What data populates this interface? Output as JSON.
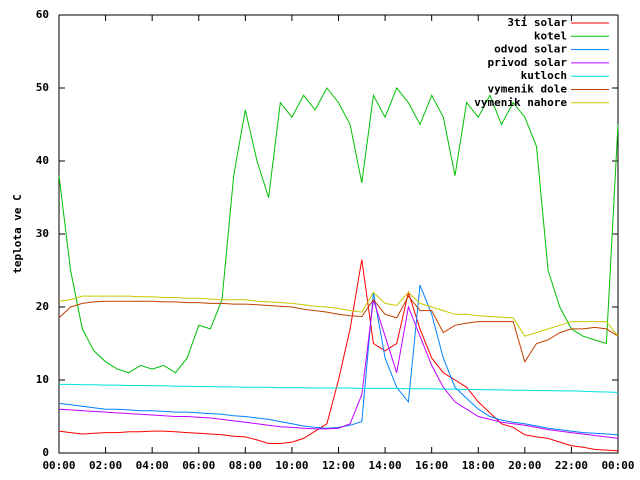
{
  "chart_data": {
    "type": "line",
    "ylabel": "teplota ve C",
    "x": [
      0,
      0.5,
      1,
      1.5,
      2,
      2.5,
      3,
      3.5,
      4,
      4.5,
      5,
      5.5,
      6,
      6.5,
      7,
      7.5,
      8,
      8.5,
      9,
      9.5,
      10,
      10.5,
      11,
      11.5,
      12,
      12.5,
      13,
      13.5,
      14,
      14.5,
      15,
      15.5,
      16,
      16.5,
      17,
      17.5,
      18,
      18.5,
      19,
      19.5,
      20,
      20.5,
      21,
      21.5,
      22,
      22.5,
      23,
      23.5,
      24
    ],
    "xlim": [
      0,
      24
    ],
    "xticks": [
      {
        "value": 0,
        "label": "00:00"
      },
      {
        "value": 2,
        "label": "02:00"
      },
      {
        "value": 4,
        "label": "04:00"
      },
      {
        "value": 6,
        "label": "06:00"
      },
      {
        "value": 8,
        "label": "08:00"
      },
      {
        "value": 10,
        "label": "10:00"
      },
      {
        "value": 12,
        "label": "12:00"
      },
      {
        "value": 14,
        "label": "14:00"
      },
      {
        "value": 16,
        "label": "16:00"
      },
      {
        "value": 18,
        "label": "18:00"
      },
      {
        "value": 20,
        "label": "20:00"
      },
      {
        "value": 22,
        "label": "22:00"
      },
      {
        "value": 24,
        "label": "00:00"
      }
    ],
    "ylim": [
      0,
      60
    ],
    "yticks": [
      0,
      10,
      20,
      30,
      40,
      50,
      60
    ],
    "legend": "top-right",
    "series": [
      {
        "name": "3ti solar",
        "color": "#ff0000",
        "values": [
          3,
          2.8,
          2.6,
          2.7,
          2.8,
          2.8,
          2.9,
          2.9,
          3,
          3,
          2.9,
          2.8,
          2.7,
          2.6,
          2.5,
          2.3,
          2.2,
          1.8,
          1.3,
          1.3,
          1.5,
          2,
          3,
          4,
          10,
          17,
          26.5,
          15,
          14,
          15,
          22,
          17,
          13,
          11,
          10,
          9,
          7,
          5.5,
          4,
          3.5,
          2.5,
          2.2,
          2,
          1.5,
          1,
          0.8,
          0.5,
          0.4,
          0.3
        ]
      },
      {
        "name": "kotel",
        "color": "#00c000",
        "values": [
          38,
          25,
          17,
          14,
          12.5,
          11.5,
          11,
          12,
          11.5,
          12,
          11,
          13,
          17.5,
          17,
          21,
          38,
          47,
          40,
          35,
          48,
          46,
          49,
          47,
          50,
          48,
          45,
          37,
          49,
          46,
          50,
          48,
          45,
          49,
          46,
          38,
          48,
          46,
          49,
          45,
          48,
          46,
          42,
          25,
          20,
          17,
          16,
          15.5,
          15,
          45
        ]
      },
      {
        "name": "odvod solar",
        "color": "#0080ff",
        "values": [
          6.8,
          6.6,
          6.4,
          6.2,
          6,
          6,
          5.9,
          5.8,
          5.8,
          5.7,
          5.6,
          5.6,
          5.5,
          5.4,
          5.3,
          5.1,
          5,
          4.8,
          4.6,
          4.3,
          4,
          3.7,
          3.5,
          3.4,
          3.5,
          3.8,
          4.3,
          22,
          13,
          9,
          7,
          23,
          19,
          13,
          9,
          7.5,
          6,
          5,
          4.5,
          4.2,
          4,
          3.7,
          3.4,
          3.2,
          3,
          2.8,
          2.7,
          2.6,
          2.5
        ]
      },
      {
        "name": "privod solar",
        "color": "#c000ff",
        "values": [
          6,
          5.9,
          5.8,
          5.7,
          5.6,
          5.5,
          5.4,
          5.3,
          5.2,
          5.1,
          5,
          5,
          4.9,
          4.8,
          4.6,
          4.4,
          4.2,
          4,
          3.8,
          3.6,
          3.5,
          3.4,
          3.3,
          3.3,
          3.4,
          4,
          8,
          21,
          16,
          11,
          20,
          16,
          12,
          9,
          7,
          6,
          5,
          4.6,
          4.2,
          4,
          3.8,
          3.5,
          3.2,
          3,
          2.8,
          2.6,
          2.4,
          2.2,
          2
        ]
      },
      {
        "name": "kutloch",
        "color": "#00e0e0",
        "values": [
          9.4,
          9.4,
          9.35,
          9.35,
          9.3,
          9.3,
          9.25,
          9.25,
          9.2,
          9.2,
          9.15,
          9.15,
          9.1,
          9.1,
          9.05,
          9.05,
          9,
          9,
          9,
          8.95,
          8.95,
          8.95,
          8.9,
          8.9,
          8.9,
          8.9,
          8.85,
          8.85,
          8.85,
          8.85,
          8.8,
          8.8,
          8.8,
          8.75,
          8.75,
          8.7,
          8.7,
          8.65,
          8.65,
          8.6,
          8.6,
          8.55,
          8.55,
          8.5,
          8.5,
          8.45,
          8.4,
          8.35,
          8.3
        ]
      },
      {
        "name": "vymenik dole",
        "color": "#c04000",
        "values": [
          18.5,
          20,
          20.5,
          20.7,
          20.8,
          20.8,
          20.8,
          20.8,
          20.8,
          20.7,
          20.7,
          20.6,
          20.6,
          20.5,
          20.5,
          20.4,
          20.4,
          20.3,
          20.2,
          20.1,
          20,
          19.7,
          19.5,
          19.3,
          19,
          18.8,
          18.7,
          21,
          19,
          18.5,
          21.5,
          19.5,
          19.5,
          16.5,
          17.5,
          17.8,
          18,
          18,
          18,
          18,
          12.5,
          15,
          15.5,
          16.5,
          17,
          17,
          17.2,
          17,
          16
        ]
      },
      {
        "name": "vymenik nahore",
        "color": "#c8c800",
        "values": [
          20.8,
          21,
          21.5,
          21.5,
          21.5,
          21.5,
          21.5,
          21.4,
          21.4,
          21.3,
          21.3,
          21.2,
          21.2,
          21.1,
          21,
          21,
          21,
          20.8,
          20.7,
          20.6,
          20.5,
          20.3,
          20.1,
          20,
          19.8,
          19.5,
          19.3,
          22,
          20.5,
          20.2,
          22,
          20.5,
          20,
          19.5,
          19,
          19,
          18.8,
          18.7,
          18.6,
          18.5,
          16,
          16.5,
          17,
          17.5,
          18,
          18,
          18,
          18,
          16
        ]
      }
    ]
  }
}
